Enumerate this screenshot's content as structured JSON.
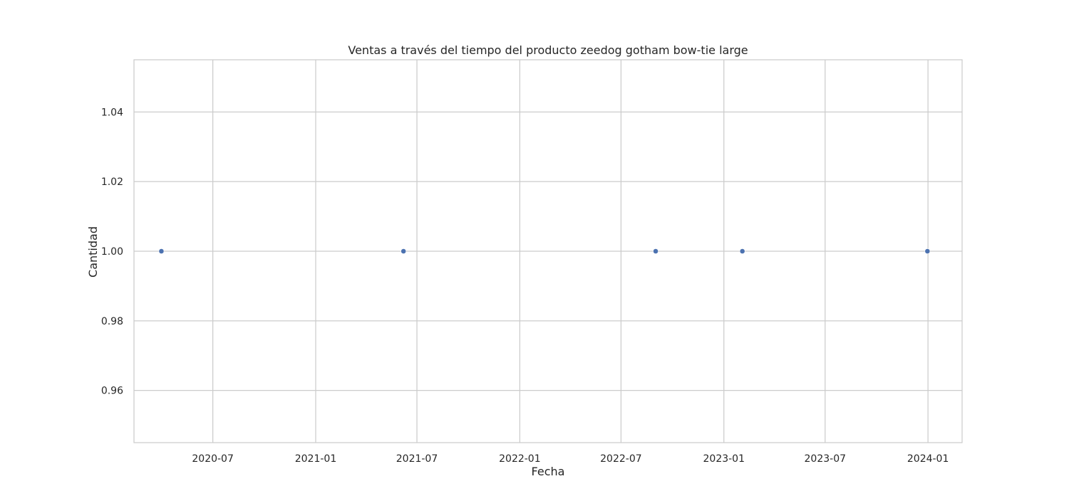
{
  "chart_data": {
    "type": "scatter",
    "title": "Ventas a través del tiempo del producto zeedog gotham bow-tie large",
    "xlabel": "Fecha",
    "ylabel": "Cantidad",
    "x_axis_type": "date",
    "xlim": [
      "2020-02-11",
      "2024-03-02"
    ],
    "ylim": [
      0.945,
      1.055
    ],
    "x_ticks": [
      "2020-07",
      "2021-01",
      "2021-07",
      "2022-01",
      "2022-07",
      "2023-01",
      "2023-07",
      "2024-01"
    ],
    "y_ticks": [
      "0.96",
      "0.98",
      "1.00",
      "1.02",
      "1.04"
    ],
    "grid": true,
    "series": [
      {
        "color": "#4c72b0",
        "points": [
          {
            "x": "2020-03-31",
            "y": 1.0
          },
          {
            "x": "2021-06-07",
            "y": 1.0
          },
          {
            "x": "2022-09-01",
            "y": 1.0
          },
          {
            "x": "2023-02-03",
            "y": 1.0
          },
          {
            "x": "2023-12-31",
            "y": 1.0
          }
        ]
      }
    ],
    "colors": {
      "grid": "#cccccc",
      "spine": "#cccccc",
      "text": "#262626",
      "marker": "#4c72b0"
    }
  }
}
